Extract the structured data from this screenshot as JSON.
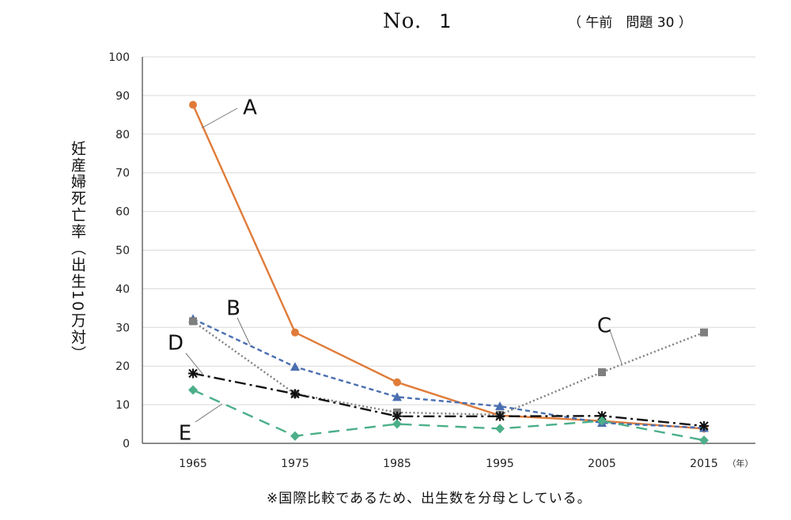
{
  "header": {
    "no_label": "No.",
    "no_value": "1",
    "reference": "（ 午前　問題 30 ）"
  },
  "footnote": "※国際比較であるため、出生数を分母としている。",
  "chart_data": {
    "type": "line",
    "title": "",
    "ylabel": "妊産婦死亡率（出生10万対）",
    "xlabel": "",
    "x_unit_label": "（年）",
    "x": [
      "1965",
      "1975",
      "1985",
      "1995",
      "2005",
      "2015"
    ],
    "ylim": [
      0,
      100
    ],
    "yticks": [
      "0",
      "10",
      "20",
      "30",
      "40",
      "50",
      "60",
      "70",
      "80",
      "90",
      "100"
    ],
    "grid": "horizontal",
    "series": [
      {
        "name": "A",
        "values": [
          87.6,
          28.7,
          15.8,
          7.2,
          5.8,
          3.8
        ],
        "color": "#e07b39",
        "marker": "circle",
        "dash": "solid"
      },
      {
        "name": "B",
        "values": [
          32.2,
          19.8,
          12.0,
          9.6,
          5.3,
          4.0
        ],
        "color": "#4a6fb0",
        "marker": "triangle",
        "dash": "dashed"
      },
      {
        "name": "C",
        "values": [
          31.6,
          12.8,
          8.0,
          7.4,
          18.4,
          28.7
        ],
        "color": "#7f7f7f",
        "marker": "square",
        "dash": "dotted"
      },
      {
        "name": "D",
        "values": [
          18.1,
          12.8,
          7.0,
          7.0,
          7.1,
          4.5
        ],
        "color": "#111111",
        "marker": "star",
        "dash": "dashdot"
      },
      {
        "name": "E",
        "values": [
          13.8,
          1.9,
          5.0,
          3.8,
          5.8,
          0.8
        ],
        "color": "#4caf89",
        "marker": "diamond",
        "dash": "longdash"
      }
    ]
  }
}
